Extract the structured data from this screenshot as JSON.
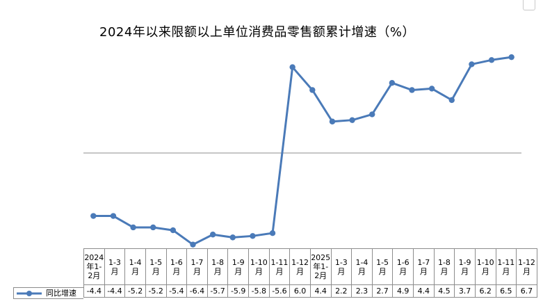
{
  "chart_data": {
    "type": "line",
    "title": "2024年以来限额以上单位消费品零售额累计增速（%）",
    "categories": [
      "2024年1-2月",
      "1-3月",
      "1-4月",
      "1-5月",
      "1-6月",
      "1-7月",
      "1-8月",
      "1-9月",
      "1-10月",
      "1-11月",
      "1-12月",
      "2025年1-2月",
      "1-3月",
      "1-4月",
      "1-5月",
      "1-6月",
      "1-7月",
      "1-8月",
      "1-9月",
      "1-10月",
      "1-11月",
      "1-12月"
    ],
    "series": [
      {
        "name": "同比增速",
        "color": "#4a7ab8",
        "values": [
          -4.4,
          -4.4,
          -5.2,
          -5.2,
          -5.4,
          -6.4,
          -5.7,
          -5.9,
          -5.8,
          -5.6,
          6.0,
          4.4,
          2.2,
          2.3,
          2.7,
          4.9,
          4.4,
          4.5,
          3.7,
          6.2,
          6.5,
          6.7
        ]
      }
    ],
    "ylim": [
      -7,
      7
    ],
    "zero_line": true,
    "legend": "bottom-left, in data table"
  }
}
